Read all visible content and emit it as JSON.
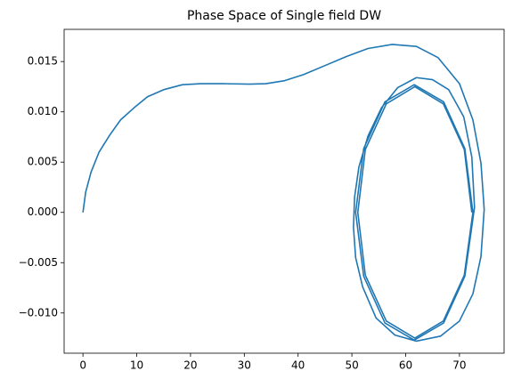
{
  "chart_data": {
    "type": "line",
    "title": "Phase Space of Single field DW",
    "color": "#1f77b4",
    "x": [
      0,
      0.5,
      1.5,
      3,
      5,
      7,
      9.5,
      12,
      15,
      18.5,
      22,
      26,
      31,
      34,
      37.5,
      41,
      45,
      49,
      53,
      57.5,
      62,
      66,
      70,
      72.5,
      74,
      74.6,
      74,
      72.5,
      70,
      66.5,
      62,
      58,
      54.5,
      52,
      50.7,
      50.3,
      50.5,
      51.3,
      53,
      55.5,
      58.5,
      62,
      65,
      68,
      70.8,
      72.3,
      72.8,
      71.0,
      67.05,
      61.6,
      56.15,
      52.2,
      50.7,
      52.2,
      56.15,
      61.6,
      67.05,
      71.0,
      72.5,
      70.9,
      67.0,
      61.7,
      56.4,
      52.5,
      51.1,
      52.5,
      56.4,
      61.7,
      67.0,
      70.9,
      72.3
    ],
    "values": [
      0,
      0.002,
      0.004,
      0.006,
      0.0077,
      0.0092,
      0.0104,
      0.0115,
      0.0122,
      0.0127,
      0.0128,
      0.0128,
      0.01275,
      0.0128,
      0.0131,
      0.0137,
      0.0146,
      0.0155,
      0.0163,
      0.0167,
      0.0165,
      0.0154,
      0.0128,
      0.0092,
      0.0049,
      0.0003,
      -0.0044,
      -0.0081,
      -0.0108,
      -0.0123,
      -0.0128,
      -0.0122,
      -0.0105,
      -0.0074,
      -0.0045,
      -0.0015,
      0.0015,
      0.0045,
      0.0076,
      0.0104,
      0.0124,
      0.0134,
      0.0132,
      0.0122,
      0.0095,
      0.0055,
      0.0005,
      -0.00635,
      -0.011,
      -0.0127,
      -0.011,
      -0.00635,
      0,
      0.00635,
      0.011,
      0.0127,
      0.011,
      0.00635,
      0,
      -0.00625,
      -0.0108,
      -0.0125,
      -0.0108,
      -0.00625,
      0,
      0.00625,
      0.0108,
      0.0125,
      0.0108,
      0.00625,
      0
    ],
    "xlim": [
      -3.5,
      78.3
    ],
    "ylim": [
      -0.014,
      0.0182
    ],
    "xticks": [
      0,
      10,
      20,
      30,
      40,
      50,
      60,
      70
    ],
    "yticks": [
      {
        "value": -0.01,
        "label": "−0.010"
      },
      {
        "value": -0.005,
        "label": "−0.005"
      },
      {
        "value": 0,
        "label": "0.000"
      },
      {
        "value": 0.005,
        "label": "0.005"
      },
      {
        "value": 0.01,
        "label": "0.010"
      },
      {
        "value": 0.015,
        "label": "0.015"
      }
    ]
  }
}
